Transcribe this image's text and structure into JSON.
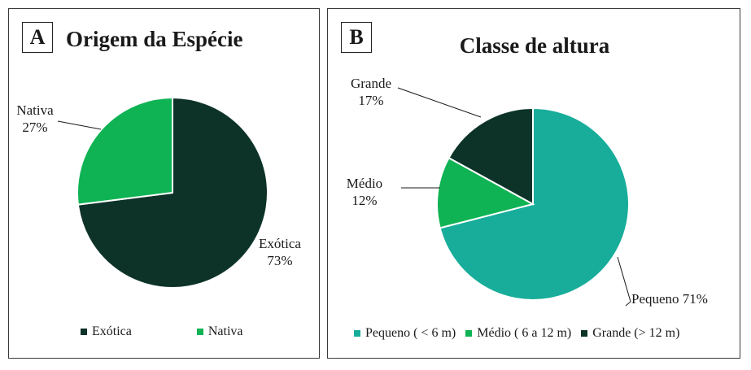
{
  "colors": {
    "exotica": "#0d3329",
    "nativa": "#10b354",
    "pequeno": "#17ad9a",
    "medio": "#10b354",
    "grande": "#0d3329"
  },
  "chart_data": [
    {
      "type": "pie",
      "panel_letter": "A",
      "title": "Origem da Espécie",
      "start_angle_deg": 0,
      "direction": "clockwise",
      "slices": [
        {
          "name": "Exótica",
          "value": 73,
          "label": "73%",
          "color": "#0d3329"
        },
        {
          "name": "Nativa",
          "value": 27,
          "label": "27%",
          "color": "#10b354"
        }
      ],
      "legend": [
        "Exótica",
        "Nativa"
      ],
      "legend_position": "bottom"
    },
    {
      "type": "pie",
      "panel_letter": "B",
      "title": "Classe de altura",
      "start_angle_deg": 0,
      "direction": "clockwise",
      "slices": [
        {
          "name": "Pequeno",
          "value": 71,
          "label": "Pequeno 71%",
          "color": "#17ad9a"
        },
        {
          "name": "Médio",
          "value": 12,
          "label": "Médio 12%",
          "color": "#10b354"
        },
        {
          "name": "Grande",
          "value": 17,
          "label": "Grande 17%",
          "color": "#0d3329"
        }
      ],
      "legend": [
        "Pequeno ( < 6 m)",
        "Médio ( 6 a 12 m)",
        "Grande (> 12 m)"
      ],
      "legend_position": "bottom"
    }
  ]
}
